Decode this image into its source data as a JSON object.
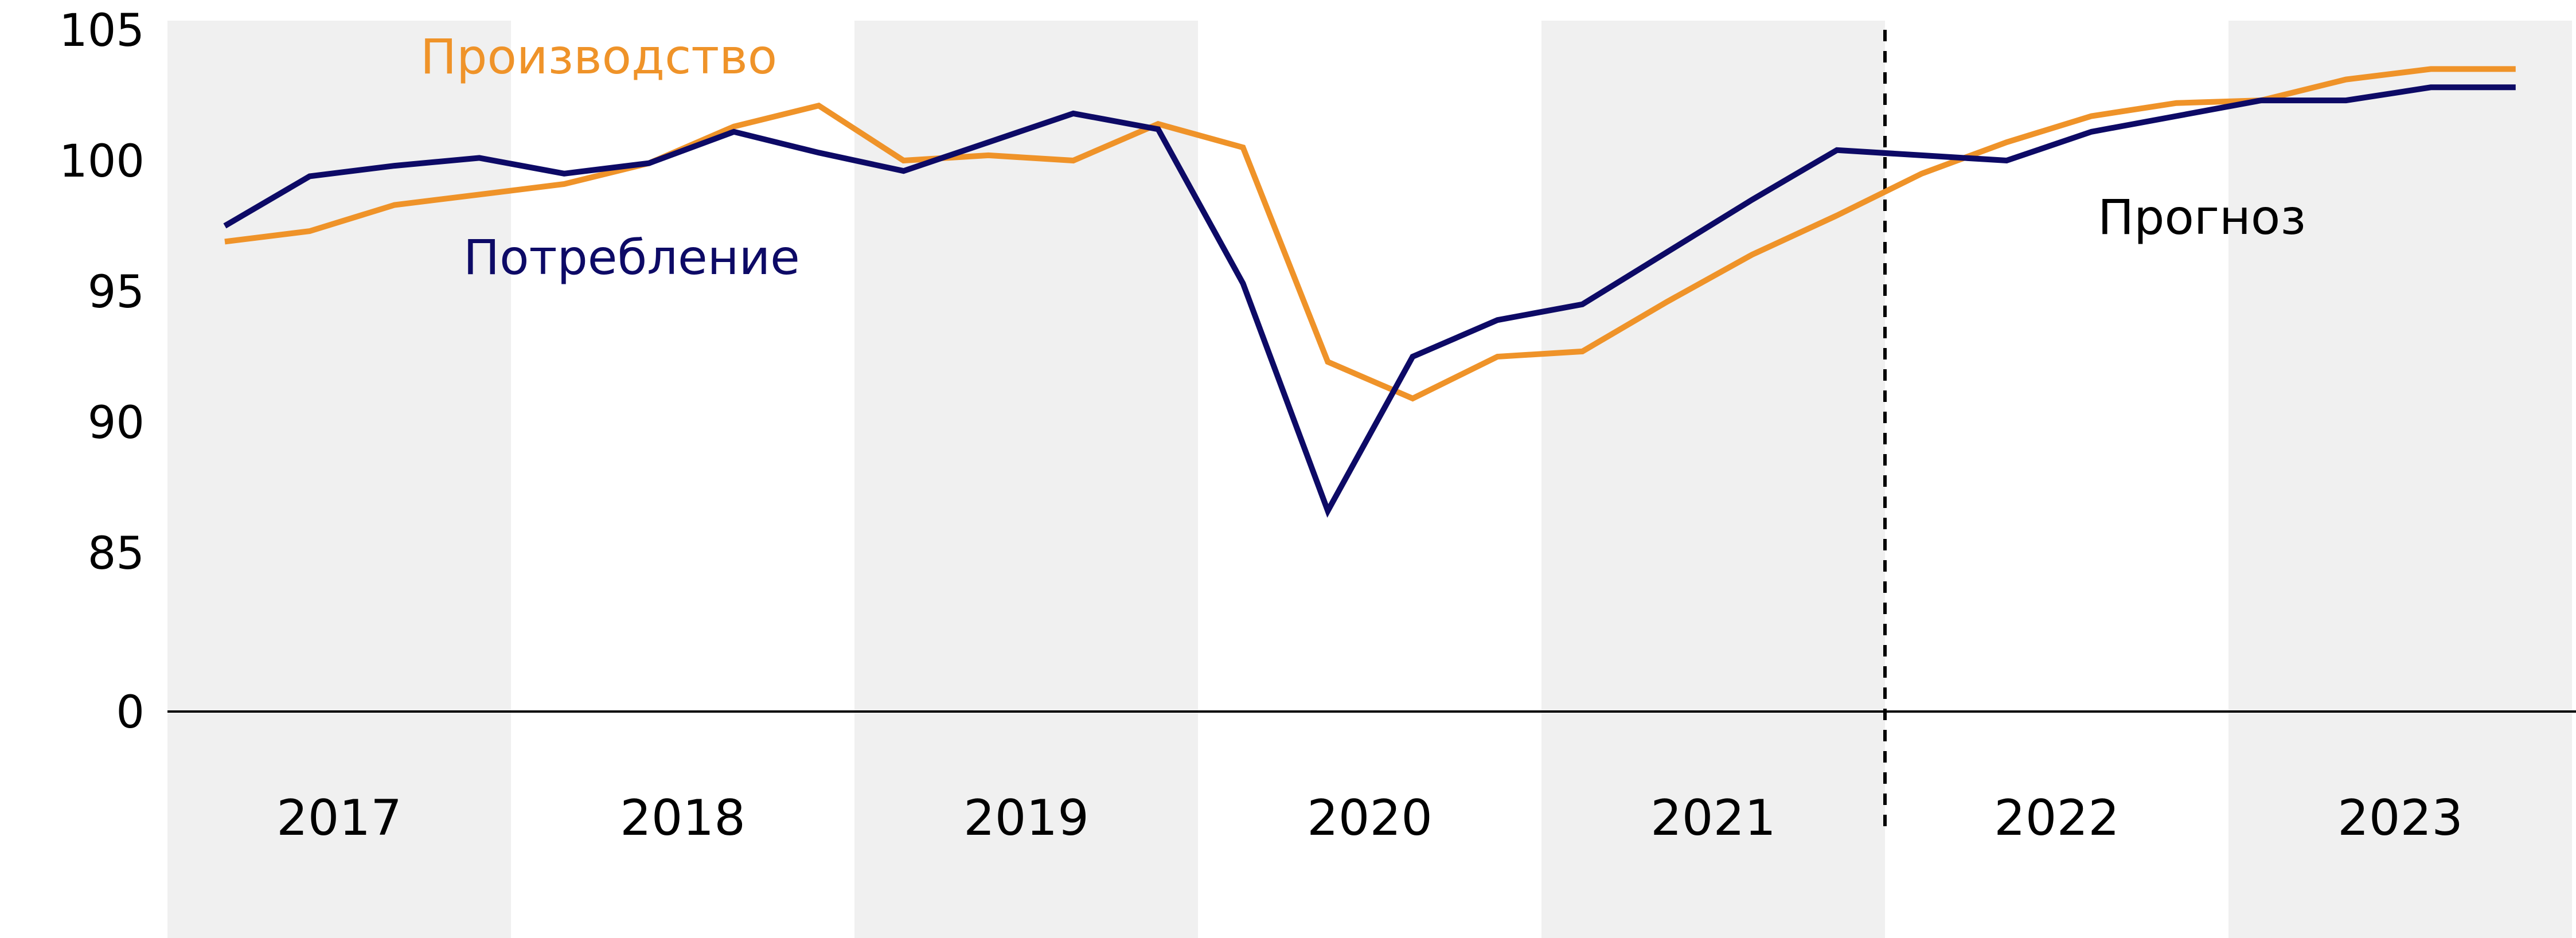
{
  "chart_data": {
    "type": "line",
    "title": "",
    "xlabel": "",
    "ylabel": "",
    "axis_break": true,
    "y_ticks": [
      105,
      100,
      95,
      90,
      85,
      0
    ],
    "ylim": [
      84,
      105
    ],
    "years": [
      "2017",
      "2018",
      "2019",
      "2020",
      "2021",
      "2022",
      "2023"
    ],
    "quarters_per_year": 4,
    "forecast_from_year": "2022",
    "forecast_label": "Прогноз",
    "grid": false,
    "series": [
      {
        "name": "Производство",
        "color": "#EF9329",
        "values": [
          96.9,
          97.3,
          98.3,
          98.7,
          99.1,
          99.9,
          101.3,
          102.1,
          100.0,
          100.2,
          100.0,
          101.4,
          100.5,
          92.3,
          90.9,
          92.5,
          92.7,
          94.6,
          96.4,
          97.9,
          99.5,
          100.7,
          101.7,
          102.2,
          102.3,
          103.1,
          103.5,
          103.5
        ]
      },
      {
        "name": "Потребление",
        "color": "#0D0A66",
        "values": [
          97.5,
          99.4,
          99.8,
          100.1,
          99.5,
          99.9,
          101.1,
          100.3,
          99.6,
          100.7,
          101.8,
          101.2,
          95.3,
          86.6,
          92.5,
          93.9,
          94.5,
          96.5,
          98.5,
          100.4,
          100.2,
          100.0,
          101.1,
          101.7,
          102.3,
          102.3,
          102.8,
          102.8
        ]
      }
    ]
  }
}
